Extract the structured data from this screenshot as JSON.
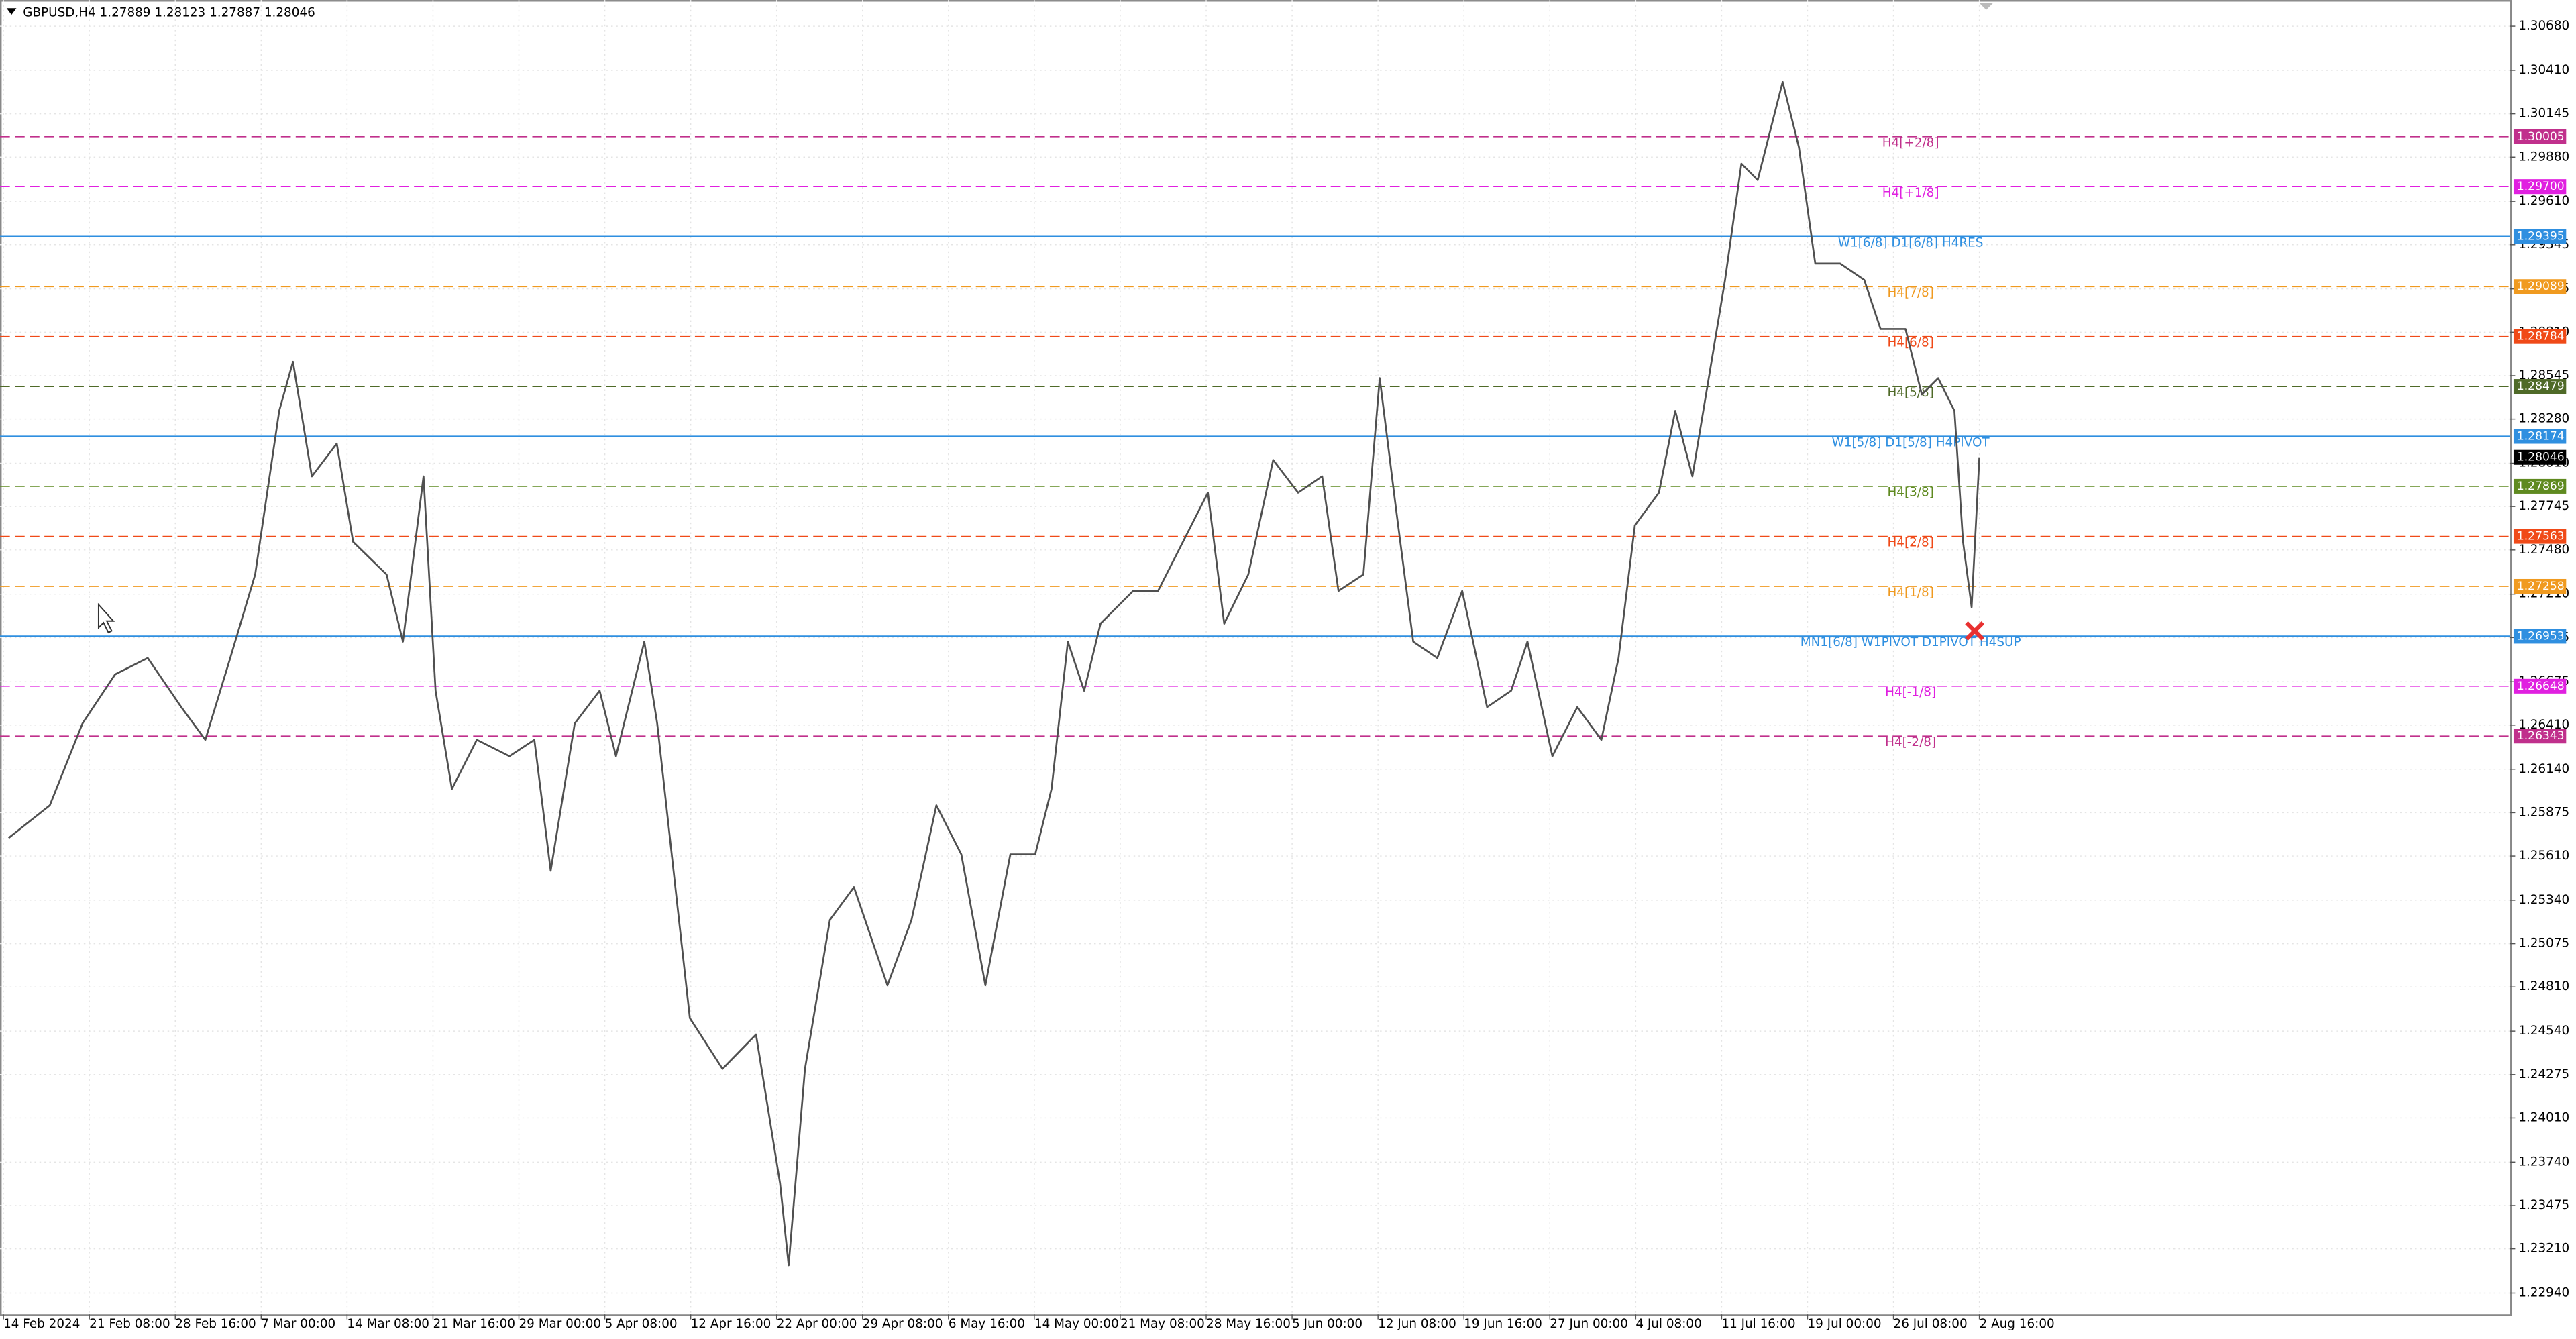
{
  "chart_data": {
    "type": "line",
    "title": "GBPUSD,H4  1.27889 1.28123 1.27887 1.28046",
    "xlim": [
      -0.04,
      29.18
    ],
    "ylim": [
      1.2281,
      1.3084
    ],
    "grid": true,
    "xticks": [
      {
        "value": 0,
        "label": "14 Feb 2024"
      },
      {
        "value": 1,
        "label": "21 Feb 08:00"
      },
      {
        "value": 2,
        "label": "28 Feb 16:00"
      },
      {
        "value": 3,
        "label": "7 Mar 00:00"
      },
      {
        "value": 4,
        "label": "14 Mar 08:00"
      },
      {
        "value": 5,
        "label": "21 Mar 16:00"
      },
      {
        "value": 6,
        "label": "29 Mar 00:00"
      },
      {
        "value": 7,
        "label": "5 Apr 08:00"
      },
      {
        "value": 8,
        "label": "12 Apr 16:00"
      },
      {
        "value": 9,
        "label": "22 Apr 00:00"
      },
      {
        "value": 10,
        "label": "29 Apr 08:00"
      },
      {
        "value": 11,
        "label": "6 May 16:00"
      },
      {
        "value": 12,
        "label": "14 May 00:00"
      },
      {
        "value": 13,
        "label": "21 May 08:00"
      },
      {
        "value": 14,
        "label": "28 May 16:00"
      },
      {
        "value": 15,
        "label": "5 Jun 00:00"
      },
      {
        "value": 16,
        "label": "12 Jun 08:00"
      },
      {
        "value": 17,
        "label": "19 Jun 16:00"
      },
      {
        "value": 18,
        "label": "27 Jun 00:00"
      },
      {
        "value": 19,
        "label": "4 Jul 08:00"
      },
      {
        "value": 20,
        "label": "11 Jul 16:00"
      },
      {
        "value": 21,
        "label": "19 Jul 00:00"
      },
      {
        "value": 22,
        "label": "26 Jul 08:00"
      },
      {
        "value": 23,
        "label": "2 Aug 16:00"
      }
    ],
    "yticks": [
      {
        "value": 1.3068,
        "label": "1.30680"
      },
      {
        "value": 1.3041,
        "label": "1.30410"
      },
      {
        "value": 1.30145,
        "label": "1.30145"
      },
      {
        "value": 1.2988,
        "label": "1.29880"
      },
      {
        "value": 1.2961,
        "label": "1.29610"
      },
      {
        "value": 1.29345,
        "label": "1.29345"
      },
      {
        "value": 1.29075,
        "label": "1.29075"
      },
      {
        "value": 1.2881,
        "label": "1.28810"
      },
      {
        "value": 1.28545,
        "label": "1.28545"
      },
      {
        "value": 1.2828,
        "label": "1.28280"
      },
      {
        "value": 1.2801,
        "label": "1.28010"
      },
      {
        "value": 1.27745,
        "label": "1.27745"
      },
      {
        "value": 1.2748,
        "label": "1.27480"
      },
      {
        "value": 1.2721,
        "label": "1.27210"
      },
      {
        "value": 1.26945,
        "label": "1.26945"
      },
      {
        "value": 1.26675,
        "label": "1.26675"
      },
      {
        "value": 1.2641,
        "label": "1.26410"
      },
      {
        "value": 1.2614,
        "label": "1.26140"
      },
      {
        "value": 1.25875,
        "label": "1.25875"
      },
      {
        "value": 1.2561,
        "label": "1.25610"
      },
      {
        "value": 1.2534,
        "label": "1.25340"
      },
      {
        "value": 1.25075,
        "label": "1.25075"
      },
      {
        "value": 1.2481,
        "label": "1.24810"
      },
      {
        "value": 1.2454,
        "label": "1.24540"
      },
      {
        "value": 1.24275,
        "label": "1.24275"
      },
      {
        "value": 1.2401,
        "label": "1.24010"
      },
      {
        "value": 1.2374,
        "label": "1.23740"
      },
      {
        "value": 1.23475,
        "label": "1.23475"
      },
      {
        "value": 1.2321,
        "label": "1.23210"
      },
      {
        "value": 1.2294,
        "label": "1.22940"
      }
    ],
    "series": [
      {
        "color": "#505050",
        "x": [
          0.06,
          0.54,
          0.92,
          1.3,
          1.68,
          2.07,
          2.35,
          2.64,
          2.93,
          3.21,
          3.37,
          3.59,
          3.88,
          4.07,
          4.46,
          4.65,
          4.89,
          5.03,
          5.22,
          5.51,
          5.89,
          6.18,
          6.37,
          6.65,
          6.94,
          7.13,
          7.46,
          7.61,
          7.8,
          7.99,
          8.37,
          8.76,
          9.04,
          9.14,
          9.33,
          9.62,
          9.9,
          10.29,
          10.57,
          10.86,
          11.15,
          11.43,
          11.72,
          12.01,
          12.2,
          12.39,
          12.58,
          12.77,
          13.15,
          13.44,
          13.73,
          14.02,
          14.21,
          14.49,
          14.78,
          15.07,
          15.35,
          15.54,
          15.83,
          16.02,
          16.21,
          16.41,
          16.69,
          16.98,
          17.27,
          17.55,
          17.74,
          18.03,
          18.32,
          18.6,
          18.8,
          18.99,
          19.27,
          19.46,
          19.66,
          19.85,
          20.04,
          20.23,
          20.42,
          20.71,
          20.9,
          21.09,
          21.38,
          21.66,
          21.85,
          22.14,
          22.33,
          22.52,
          22.71,
          22.81,
          22.91,
          23.0
        ],
        "values": [
          1.2572,
          1.2592,
          1.2642,
          1.2672,
          1.2682,
          1.2652,
          1.2632,
          1.2682,
          1.2733,
          1.2833,
          1.2863,
          1.2793,
          1.2813,
          1.2753,
          1.2733,
          1.2692,
          1.2793,
          1.2662,
          1.2602,
          1.2632,
          1.2622,
          1.2632,
          1.2552,
          1.2642,
          1.2662,
          1.2622,
          1.2692,
          1.2642,
          1.2552,
          1.2462,
          1.2431,
          1.2452,
          1.2361,
          1.2311,
          1.2431,
          1.2522,
          1.2542,
          1.2482,
          1.2522,
          1.2592,
          1.2562,
          1.2482,
          1.2562,
          1.2562,
          1.2602,
          1.2692,
          1.2662,
          1.2703,
          1.2723,
          1.2723,
          1.2753,
          1.2783,
          1.2703,
          1.2733,
          1.2803,
          1.2783,
          1.2793,
          1.2723,
          1.2733,
          1.2853,
          1.2773,
          1.2692,
          1.2682,
          1.2723,
          1.2652,
          1.2662,
          1.2692,
          1.2622,
          1.2652,
          1.2632,
          1.2682,
          1.2763,
          1.2783,
          1.2833,
          1.2793,
          1.2853,
          1.2913,
          1.2984,
          1.2974,
          1.3034,
          1.2994,
          1.2923,
          1.2923,
          1.2913,
          1.2883,
          1.2883,
          1.2843,
          1.2853,
          1.2833,
          1.2753,
          1.2713,
          1.28046
        ]
      }
    ],
    "levels": [
      {
        "label": "H4[+2/8]",
        "value": 1.30005,
        "value_label": "1.30005",
        "color": "#c0308c",
        "dashed": true
      },
      {
        "label": "H4[+1/8]",
        "value": 1.297,
        "value_label": "1.29700",
        "color": "#e020e0",
        "dashed": true
      },
      {
        "label": "W1[6/8] D1[6/8] H4RES",
        "value": 1.29395,
        "value_label": "1.29395",
        "color": "#2f8fe0",
        "dashed": false
      },
      {
        "label": "H4[7/8]",
        "value": 1.29089,
        "value_label": "1.29089",
        "color": "#f09a20",
        "dashed": true
      },
      {
        "label": "H4[6/8]",
        "value": 1.28784,
        "value_label": "1.28784",
        "color": "#f04a18",
        "dashed": true
      },
      {
        "label": "H4[5/8]",
        "value": 1.28479,
        "value_label": "1.28479",
        "color": "#4f6a28",
        "dashed": true
      },
      {
        "label": "W1[5/8] D1[5/8] H4PIVOT",
        "value": 1.28174,
        "value_label": "1.28174",
        "color": "#2f8fe0",
        "dashed": false
      },
      {
        "label": "H4[3/8]",
        "value": 1.27869,
        "value_label": "1.27869",
        "color": "#5f8a20",
        "dashed": true
      },
      {
        "label": "H4[2/8]",
        "value": 1.27563,
        "value_label": "1.27563",
        "color": "#f04a18",
        "dashed": true
      },
      {
        "label": "H4[1/8]",
        "value": 1.27258,
        "value_label": "1.27258",
        "color": "#f09a20",
        "dashed": true
      },
      {
        "label": "MN1[6/8] W1PIVOT D1PIVOT H4SUP",
        "value": 1.26953,
        "value_label": "1.26953",
        "color": "#2f8fe0",
        "dashed": false
      },
      {
        "label": "H4[-1/8]",
        "value": 1.26648,
        "value_label": "1.26648",
        "color": "#e020e0",
        "dashed": true
      },
      {
        "label": "H4[-2/8]",
        "value": 1.26343,
        "value_label": "1.26343",
        "color": "#c0308c",
        "dashed": true
      }
    ],
    "bid": {
      "value": 1.28046,
      "label": "1.28046",
      "color": "#000000"
    }
  }
}
